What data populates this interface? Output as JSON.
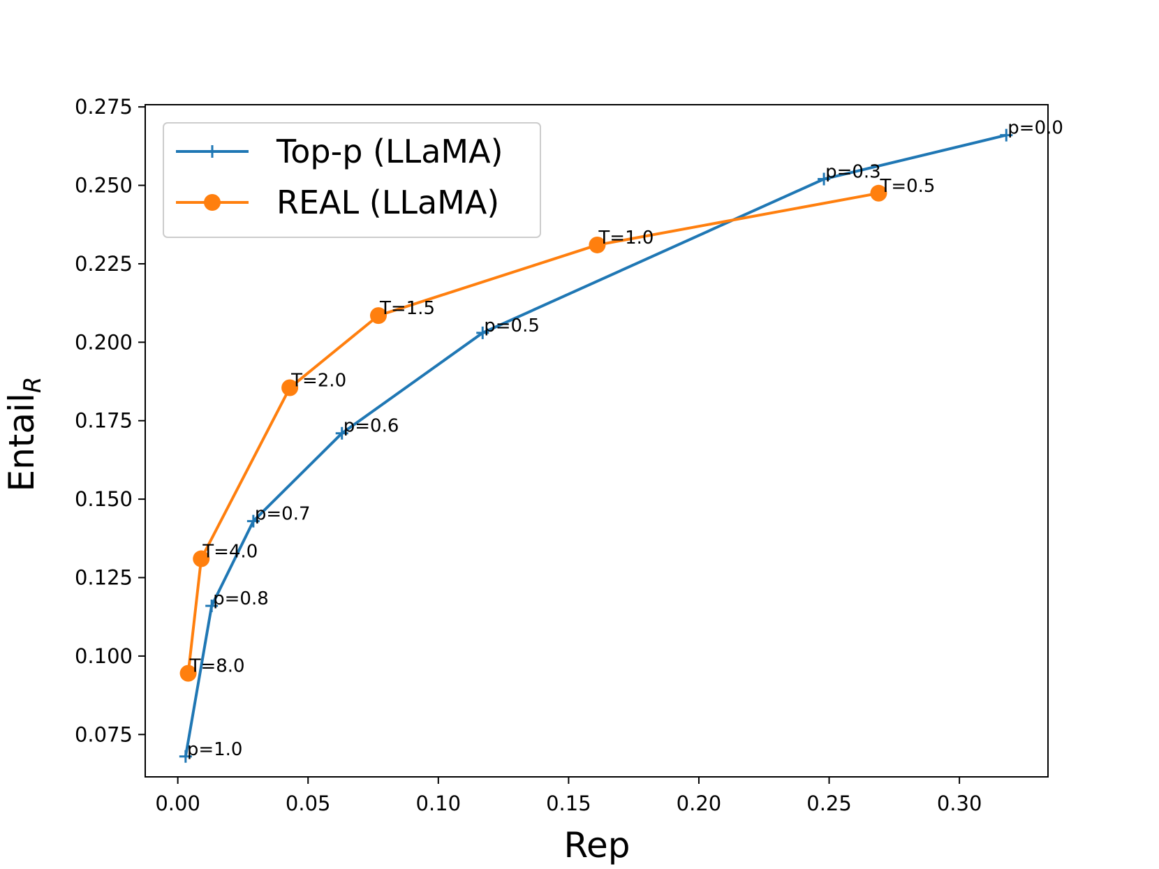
{
  "chart_data": {
    "type": "line",
    "xlabel": "Rep",
    "ylabel": "Entail",
    "ylabel_subscript": "R",
    "xlim": [
      -0.0125,
      0.334
    ],
    "ylim": [
      0.0615,
      0.2757
    ],
    "xticks": [
      0.0,
      0.05,
      0.1,
      0.15,
      0.2,
      0.25,
      0.3
    ],
    "xtick_labels": [
      "0.00",
      "0.05",
      "0.10",
      "0.15",
      "0.20",
      "0.25",
      "0.30"
    ],
    "yticks": [
      0.075,
      0.1,
      0.125,
      0.15,
      0.175,
      0.2,
      0.225,
      0.25,
      0.275
    ],
    "ytick_labels": [
      "0.075",
      "0.100",
      "0.125",
      "0.150",
      "0.175",
      "0.200",
      "0.225",
      "0.250",
      "0.275"
    ],
    "grid": false,
    "legend_position": "top-left",
    "series": [
      {
        "name": "Top-p (LLaMA)",
        "color": "#1f77b4",
        "marker": "plus",
        "points": [
          {
            "x": 0.003,
            "y": 0.068,
            "label": "p=1.0"
          },
          {
            "x": 0.013,
            "y": 0.116,
            "label": "p=0.8"
          },
          {
            "x": 0.029,
            "y": 0.143,
            "label": "p=0.7"
          },
          {
            "x": 0.063,
            "y": 0.171,
            "label": "p=0.6"
          },
          {
            "x": 0.117,
            "y": 0.203,
            "label": "p=0.5"
          },
          {
            "x": 0.248,
            "y": 0.252,
            "label": "p=0.3"
          },
          {
            "x": 0.318,
            "y": 0.266,
            "label": "p=0.0"
          }
        ]
      },
      {
        "name": "REAL (LLaMA)",
        "color": "#ff7f0e",
        "marker": "circle",
        "points": [
          {
            "x": 0.004,
            "y": 0.0945,
            "label": "T=8.0"
          },
          {
            "x": 0.009,
            "y": 0.131,
            "label": "T=4.0"
          },
          {
            "x": 0.043,
            "y": 0.1855,
            "label": "T=2.0"
          },
          {
            "x": 0.077,
            "y": 0.2085,
            "label": "T=1.5"
          },
          {
            "x": 0.161,
            "y": 0.231,
            "label": "T=1.0"
          },
          {
            "x": 0.269,
            "y": 0.2475,
            "label": "T=0.5"
          }
        ]
      }
    ]
  }
}
